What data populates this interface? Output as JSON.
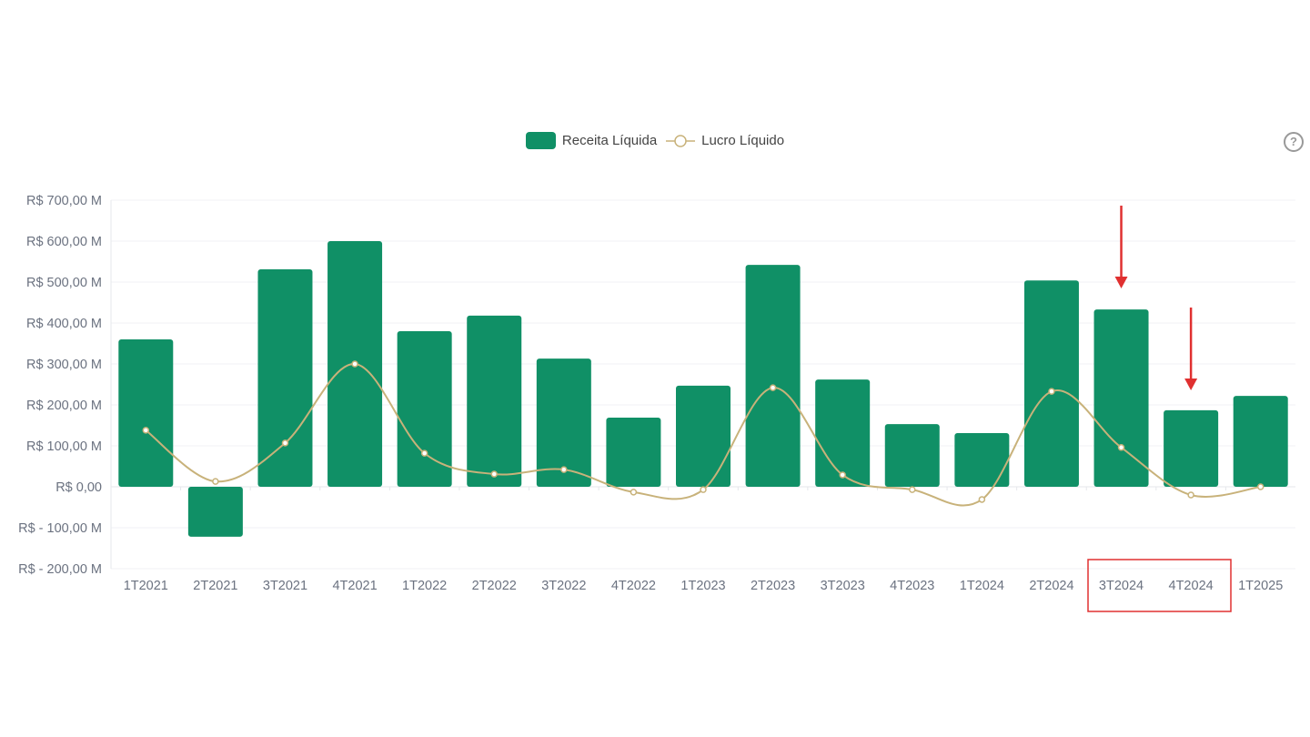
{
  "chart_data": {
    "type": "bar+line",
    "title": "",
    "xlabel": "",
    "ylabel": "",
    "ylim": [
      -200,
      700
    ],
    "y_unit": "R$ milhões",
    "yticks": [
      700,
      600,
      500,
      400,
      300,
      200,
      100,
      0,
      -100,
      -200
    ],
    "ytick_labels": [
      "R$  700,00 M",
      "R$  600,00 M",
      "R$  500,00 M",
      "R$  400,00 M",
      "R$  300,00 M",
      "R$  200,00 M",
      "R$  100,00 M",
      "R$ 0,00",
      "R$ - 100,00 M",
      "R$ - 200,00 M"
    ],
    "grid": true,
    "legend_position": "top-center",
    "categories": [
      "1T2021",
      "2T2021",
      "3T2021",
      "4T2021",
      "1T2022",
      "2T2022",
      "3T2022",
      "4T2022",
      "1T2023",
      "2T2023",
      "3T2023",
      "4T2023",
      "1T2024",
      "2T2024",
      "3T2024",
      "4T2024",
      "1T2025"
    ],
    "series": [
      {
        "name": "Receita Líquida",
        "type": "bar",
        "color": "#109066",
        "values": [
          360,
          -122,
          531,
          600,
          380,
          418,
          313,
          169,
          247,
          542,
          262,
          153,
          131,
          504,
          433,
          187,
          222
        ]
      },
      {
        "name": "Lucro Líquido",
        "type": "line",
        "color": "#c8b27a",
        "values": [
          138,
          13,
          107,
          300,
          82,
          31,
          42,
          -13,
          -7,
          242,
          29,
          -7,
          -31,
          233,
          96,
          -20,
          0
        ]
      }
    ],
    "annotations": [
      {
        "type": "arrow",
        "target": "3T2024",
        "color": "#e03030"
      },
      {
        "type": "arrow",
        "target": "4T2024",
        "color": "#e03030"
      },
      {
        "type": "box",
        "targets": [
          "3T2024",
          "4T2024"
        ],
        "color": "#e03030"
      }
    ]
  },
  "legend": {
    "bar_label": "Receita Líquida",
    "line_label": "Lucro Líquido"
  },
  "help_icon": "?"
}
